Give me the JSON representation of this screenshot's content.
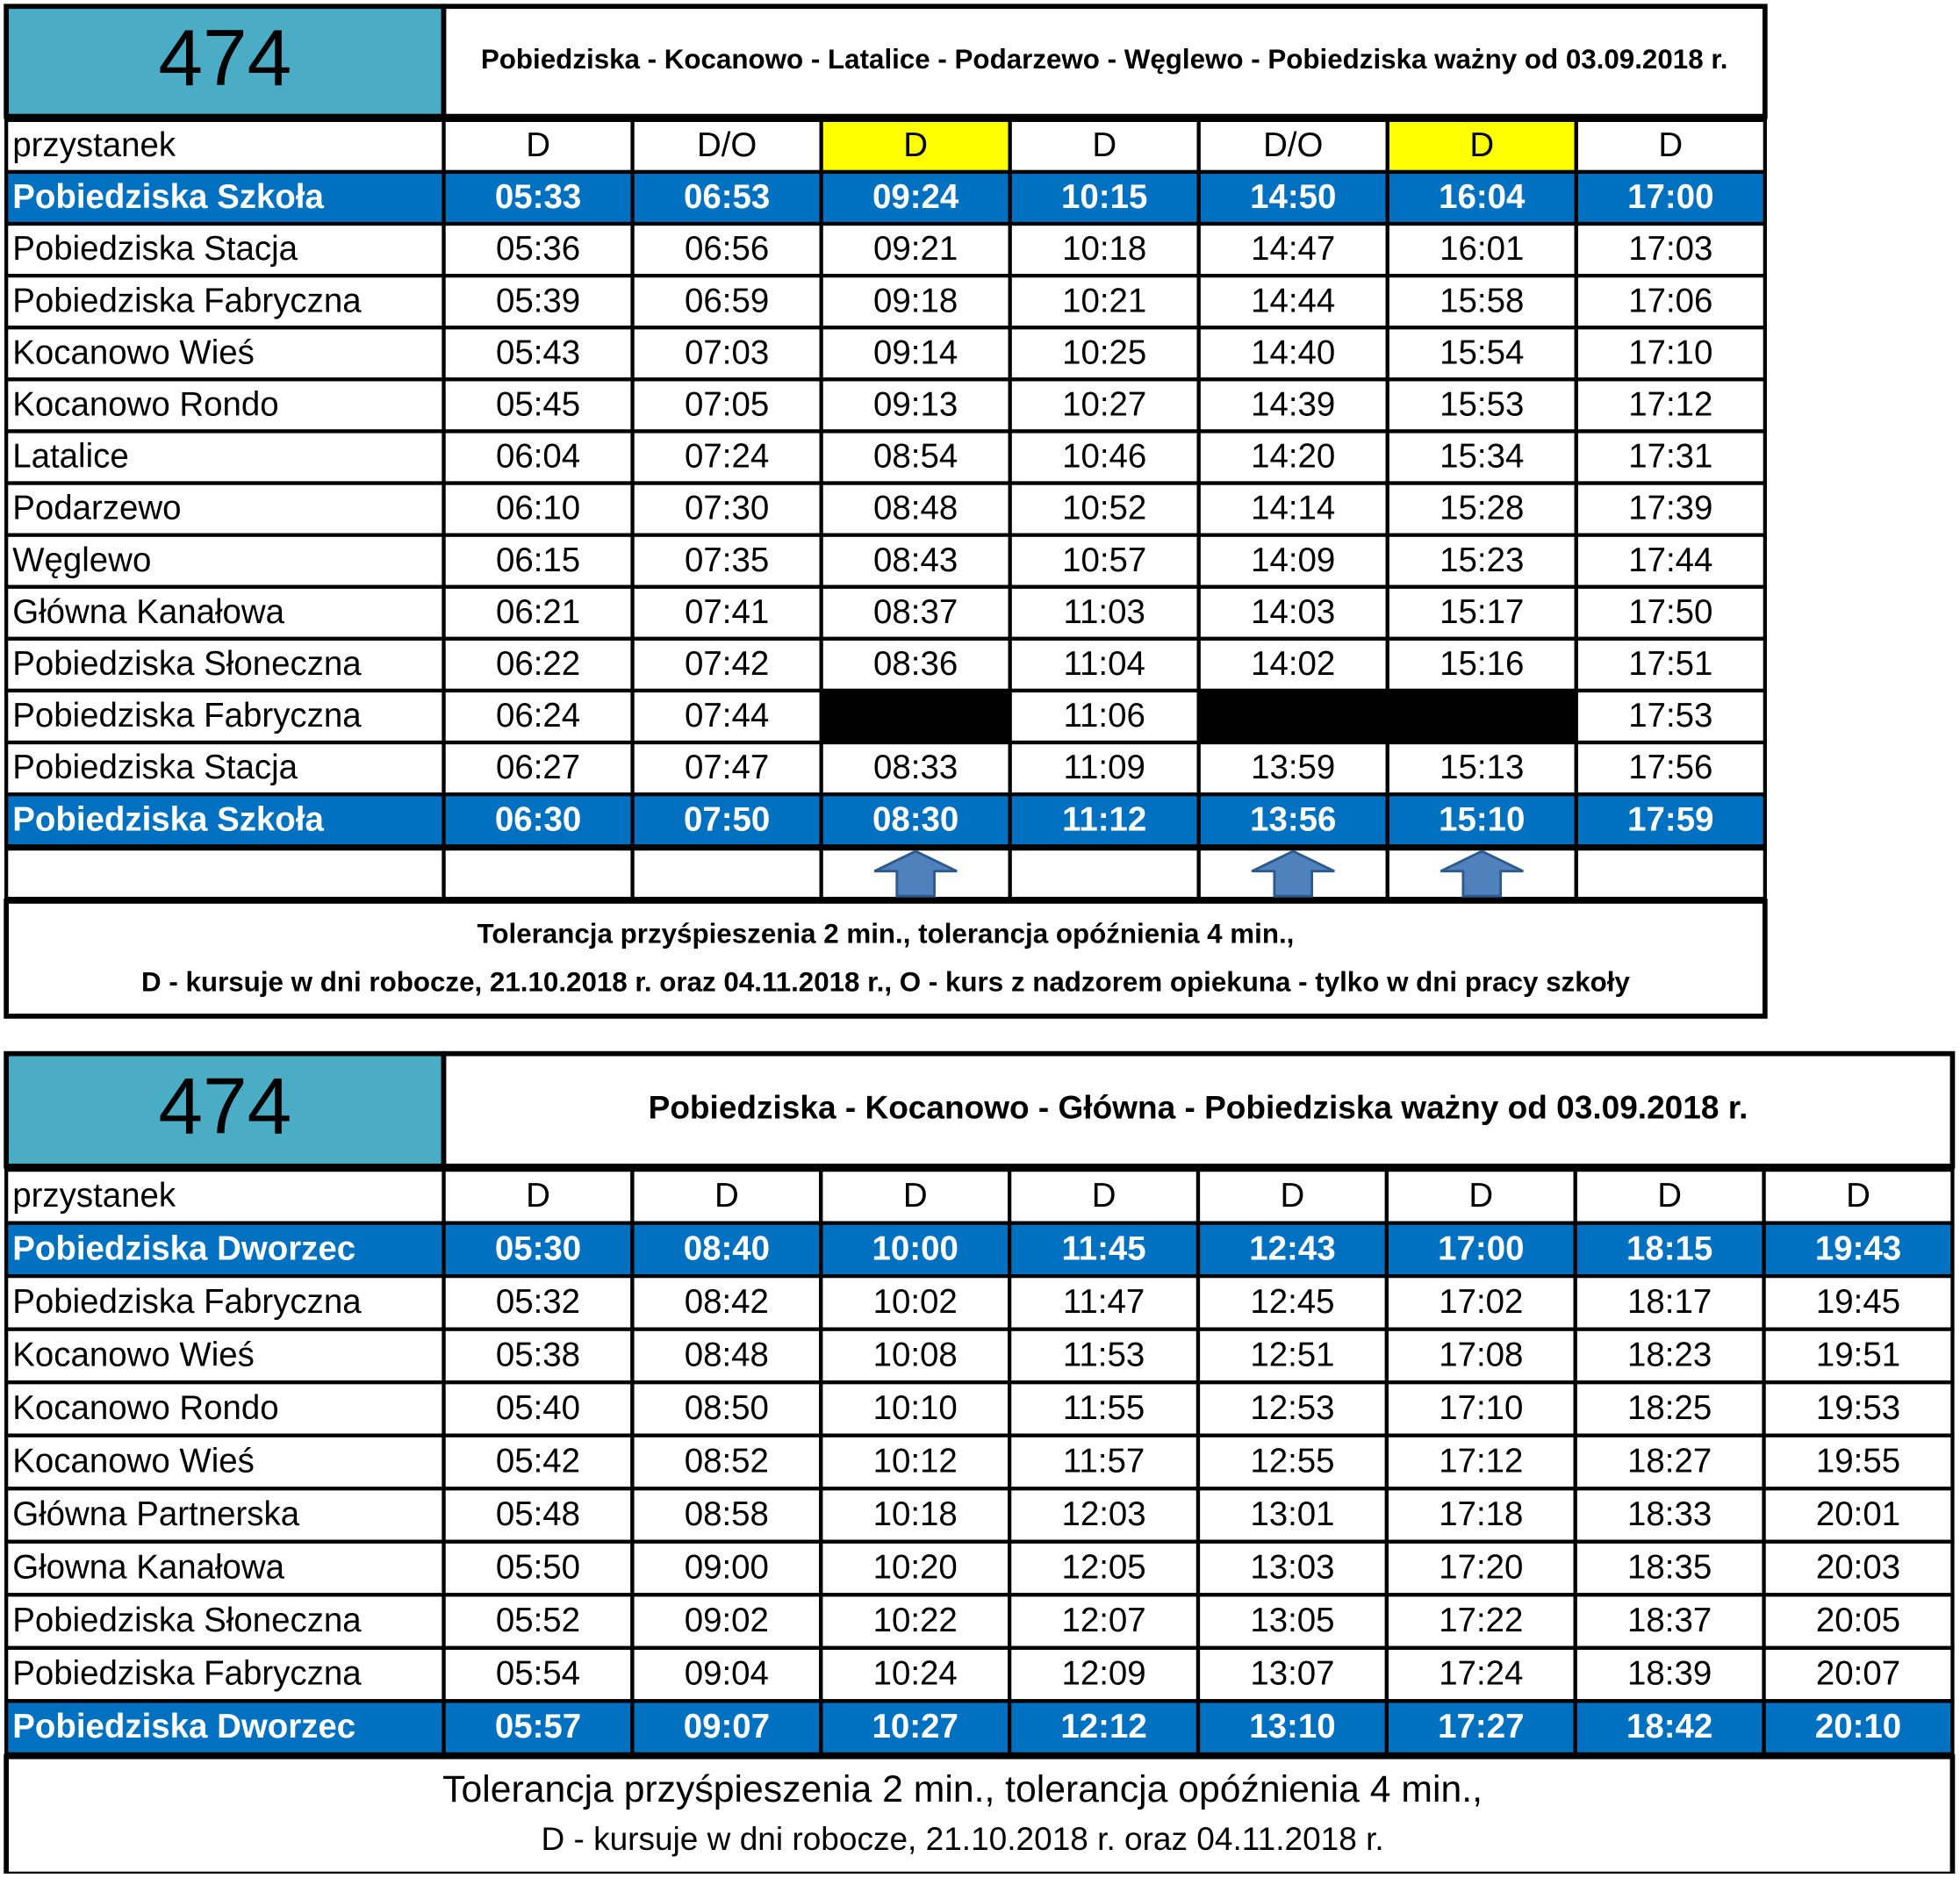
{
  "tables": [
    {
      "route": "474",
      "title": "Pobiedziska - Kocanowo - Latalice - Podarzewo - Węglewo - Pobiedziska ważny od 03.09.2018 r.",
      "header": [
        "przystanek",
        "D",
        "D/O",
        "D",
        "D",
        "D/O",
        "D",
        "D"
      ],
      "rows": [
        [
          "Pobiedziska Szkoła",
          "05:33",
          "06:53",
          "09:24",
          "10:15",
          "14:50",
          "16:04",
          "17:00"
        ],
        [
          "Pobiedziska Stacja",
          "05:36",
          "06:56",
          "09:21",
          "10:18",
          "14:47",
          "16:01",
          "17:03"
        ],
        [
          "Pobiedziska Fabryczna",
          "05:39",
          "06:59",
          "09:18",
          "10:21",
          "14:44",
          "15:58",
          "17:06"
        ],
        [
          "Kocanowo Wieś",
          "05:43",
          "07:03",
          "09:14",
          "10:25",
          "14:40",
          "15:54",
          "17:10"
        ],
        [
          "Kocanowo Rondo",
          "05:45",
          "07:05",
          "09:13",
          "10:27",
          "14:39",
          "15:53",
          "17:12"
        ],
        [
          "Latalice",
          "06:04",
          "07:24",
          "08:54",
          "10:46",
          "14:20",
          "15:34",
          "17:31"
        ],
        [
          "Podarzewo",
          "06:10",
          "07:30",
          "08:48",
          "10:52",
          "14:14",
          "15:28",
          "17:39"
        ],
        [
          "Węglewo",
          "06:15",
          "07:35",
          "08:43",
          "10:57",
          "14:09",
          "15:23",
          "17:44"
        ],
        [
          "Główna Kanałowa",
          "06:21",
          "07:41",
          "08:37",
          "11:03",
          "14:03",
          "15:17",
          "17:50"
        ],
        [
          "Pobiedziska Słoneczna",
          "06:22",
          "07:42",
          "08:36",
          "11:04",
          "14:02",
          "15:16",
          "17:51"
        ],
        [
          "Pobiedziska Fabryczna",
          "06:24",
          "07:44",
          null,
          "11:06",
          null,
          null,
          "17:53"
        ],
        [
          "Pobiedziska Stacja",
          "06:27",
          "07:47",
          "08:33",
          "11:09",
          "13:59",
          "15:13",
          "17:56"
        ],
        [
          "Pobiedziska Szkoła",
          "06:30",
          "07:50",
          "08:30",
          "11:12",
          "13:56",
          "15:10",
          "17:59"
        ]
      ],
      "footer": [
        "Tolerancja przyśpieszenia 2 min., tolerancja opóźnienia 4 min.,",
        "D - kursuje w dni robocze, 21.10.2018 r. oraz 04.11.2018 r., O - kurs z nadzorem opiekuna - tylko w dni pracy szkoły"
      ]
    },
    {
      "route": "474",
      "title": "Pobiedziska - Kocanowo - Główna - Pobiedziska ważny od 03.09.2018 r.",
      "header": [
        "przystanek",
        "D",
        "D",
        "D",
        "D",
        "D",
        "D",
        "D",
        "D"
      ],
      "rows": [
        [
          "Pobiedziska Dworzec",
          "05:30",
          "08:40",
          "10:00",
          "11:45",
          "12:43",
          "17:00",
          "18:15",
          "19:43"
        ],
        [
          "Pobiedziska Fabryczna",
          "05:32",
          "08:42",
          "10:02",
          "11:47",
          "12:45",
          "17:02",
          "18:17",
          "19:45"
        ],
        [
          "Kocanowo Wieś",
          "05:38",
          "08:48",
          "10:08",
          "11:53",
          "12:51",
          "17:08",
          "18:23",
          "19:51"
        ],
        [
          "Kocanowo Rondo",
          "05:40",
          "08:50",
          "10:10",
          "11:55",
          "12:53",
          "17:10",
          "18:25",
          "19:53"
        ],
        [
          "Kocanowo Wieś",
          "05:42",
          "08:52",
          "10:12",
          "11:57",
          "12:55",
          "17:12",
          "18:27",
          "19:55"
        ],
        [
          "Główna Partnerska",
          "05:48",
          "08:58",
          "10:18",
          "12:03",
          "13:01",
          "17:18",
          "18:33",
          "20:01"
        ],
        [
          "Głowna Kanałowa",
          "05:50",
          "09:00",
          "10:20",
          "12:05",
          "13:03",
          "17:20",
          "18:35",
          "20:03"
        ],
        [
          "Pobiedziska Słoneczna",
          "05:52",
          "09:02",
          "10:22",
          "12:07",
          "13:05",
          "17:22",
          "18:37",
          "20:05"
        ],
        [
          "Pobiedziska Fabryczna",
          "05:54",
          "09:04",
          "10:24",
          "12:09",
          "13:07",
          "17:24",
          "18:39",
          "20:07"
        ],
        [
          "Pobiedziska Dworzec",
          "05:57",
          "09:07",
          "10:27",
          "12:12",
          "13:10",
          "17:27",
          "18:42",
          "20:10"
        ]
      ],
      "footer": [
        "Tolerancja przyśpieszenia 2 min., tolerancja opóźnienia 4 min.,",
        "D - kursuje w dni robocze, 21.10.2018 r. oraz 04.11.2018 r."
      ]
    }
  ]
}
